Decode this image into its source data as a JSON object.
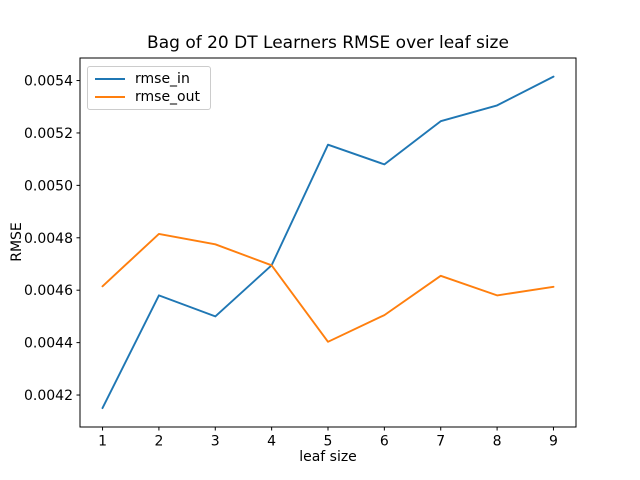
{
  "chart_data": {
    "type": "line",
    "title": "Bag of 20 DT Learners RMSE over leaf size",
    "xlabel": "leaf size",
    "ylabel": "RMSE",
    "x": [
      1,
      2,
      3,
      4,
      5,
      6,
      7,
      8,
      9
    ],
    "series": [
      {
        "name": "rmse_in",
        "color": "#1f77b4",
        "values": [
          0.00415,
          0.00458,
          0.0045,
          0.004695,
          0.005155,
          0.00508,
          0.005245,
          0.005305,
          0.005415
        ]
      },
      {
        "name": "rmse_out",
        "color": "#ff7f0e",
        "values": [
          0.004615,
          0.004815,
          0.004775,
          0.004695,
          0.004403,
          0.004505,
          0.004655,
          0.00458,
          0.004613
        ]
      }
    ],
    "xlim": [
      0.6,
      9.4
    ],
    "ylim": [
      0.004078,
      0.005486
    ],
    "xticks": [
      1,
      2,
      3,
      4,
      5,
      6,
      7,
      8,
      9
    ],
    "xtick_labels": [
      "1",
      "2",
      "3",
      "4",
      "5",
      "6",
      "7",
      "8",
      "9"
    ],
    "yticks": [
      0.0042,
      0.0044,
      0.0046,
      0.0048,
      0.005,
      0.0052,
      0.0054
    ],
    "ytick_labels": [
      "0.0042",
      "0.0044",
      "0.0046",
      "0.0048",
      "0.0050",
      "0.0052",
      "0.0054"
    ],
    "grid": false,
    "legend_position": "upper left",
    "axis_color": "#000000",
    "background_color": "#ffffff",
    "legend_border_color": "#cccccc"
  }
}
